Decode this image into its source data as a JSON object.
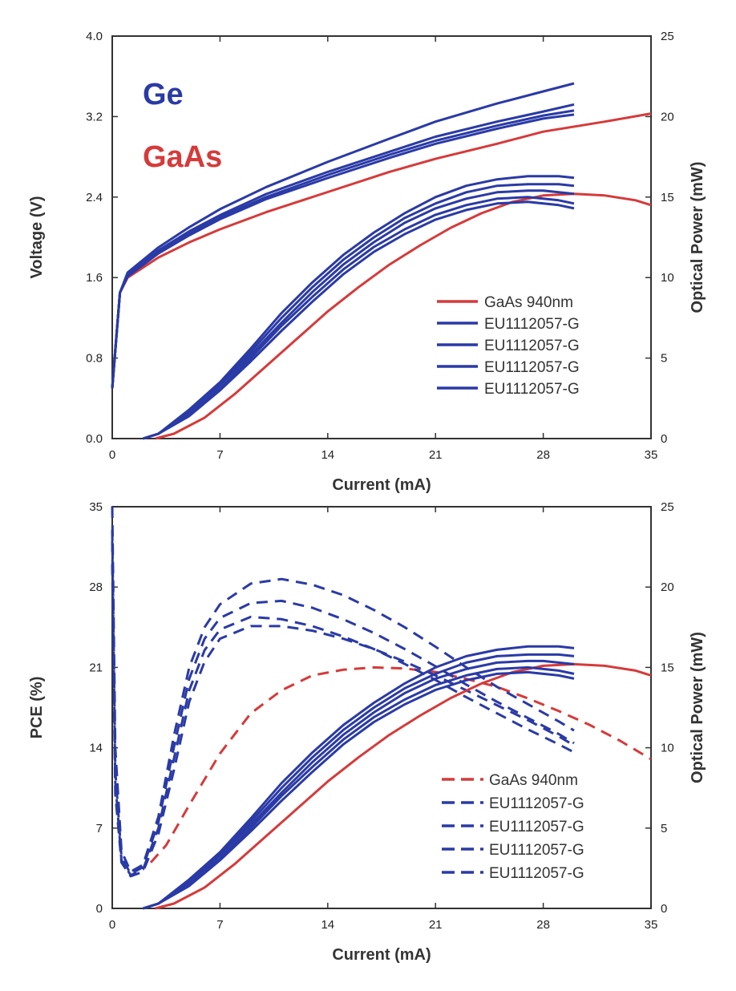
{
  "colors": {
    "gaas": "#d63a3a",
    "ge": "#2a3aa6",
    "axis": "#333333"
  },
  "chart_data": [
    {
      "type": "line",
      "title": "",
      "xlabel": "Current (mA)",
      "ylabel": "Voltage (V)",
      "y2label": "Optical Power (mW)",
      "xlim": [
        0,
        35
      ],
      "ylim": [
        0,
        4.0
      ],
      "y2lim": [
        0,
        25
      ],
      "xticks": [
        "0",
        "7",
        "14",
        "21",
        "28",
        "35"
      ],
      "yticks": [
        "0.0",
        "0.8",
        "1.6",
        "2.4",
        "3.2",
        "4.0"
      ],
      "y2ticks": [
        "0",
        "5",
        "10",
        "15",
        "20",
        "25"
      ],
      "annotations": [
        {
          "text": "Ge",
          "color": "#2a3aa6"
        },
        {
          "text": "GaAs",
          "color": "#d63a3a"
        }
      ],
      "legend": {
        "placement": "bottom-right",
        "entries": [
          "GaAs 940nm",
          "EU1112057-G",
          "EU1112057-G",
          "EU1112057-G",
          "EU1112057-G"
        ]
      },
      "series": [
        {
          "name": "GaAs 940nm",
          "quantity": "voltage",
          "axis": "left",
          "color": "#d63a3a",
          "style": "solid",
          "x": [
            0,
            0.5,
            1,
            3,
            5,
            7,
            10,
            14,
            18,
            21,
            25,
            28,
            32,
            35
          ],
          "y": [
            0.5,
            1.45,
            1.6,
            1.8,
            1.95,
            2.08,
            2.25,
            2.45,
            2.65,
            2.78,
            2.93,
            3.05,
            3.15,
            3.23
          ]
        },
        {
          "name": "EU1112057-G",
          "quantity": "voltage",
          "axis": "left",
          "color": "#2a3aa6",
          "style": "solid",
          "x": [
            0,
            0.5,
            1,
            3,
            5,
            7,
            10,
            14,
            18,
            21,
            25,
            28,
            30
          ],
          "y": [
            0.5,
            1.45,
            1.65,
            1.9,
            2.1,
            2.28,
            2.5,
            2.75,
            2.98,
            3.15,
            3.33,
            3.45,
            3.53
          ]
        },
        {
          "name": "EU1112057-G",
          "quantity": "voltage",
          "axis": "left",
          "color": "#2a3aa6",
          "style": "solid",
          "x": [
            0,
            0.5,
            1,
            3,
            5,
            7,
            10,
            14,
            18,
            21,
            25,
            28,
            30
          ],
          "y": [
            0.5,
            1.45,
            1.63,
            1.87,
            2.06,
            2.22,
            2.43,
            2.65,
            2.85,
            3.0,
            3.15,
            3.25,
            3.32
          ]
        },
        {
          "name": "EU1112057-G",
          "quantity": "voltage",
          "axis": "left",
          "color": "#2a3aa6",
          "style": "solid",
          "x": [
            0,
            0.5,
            1,
            3,
            5,
            7,
            10,
            14,
            18,
            21,
            25,
            28,
            30
          ],
          "y": [
            0.5,
            1.45,
            1.62,
            1.85,
            2.04,
            2.2,
            2.4,
            2.62,
            2.82,
            2.96,
            3.11,
            3.21,
            3.26
          ]
        },
        {
          "name": "EU1112057-G",
          "quantity": "voltage",
          "axis": "left",
          "color": "#2a3aa6",
          "style": "solid",
          "x": [
            0,
            0.5,
            1,
            3,
            5,
            7,
            10,
            14,
            18,
            21,
            25,
            28,
            30
          ],
          "y": [
            0.5,
            1.45,
            1.61,
            1.84,
            2.02,
            2.18,
            2.38,
            2.59,
            2.79,
            2.93,
            3.08,
            3.18,
            3.22
          ]
        },
        {
          "name": "GaAs 940nm",
          "quantity": "optical power",
          "axis": "right",
          "color": "#d63a3a",
          "style": "solid",
          "x": [
            2.8,
            4,
            6,
            8,
            10,
            12,
            14,
            16,
            18,
            20,
            22,
            24,
            26,
            28,
            30,
            32,
            34,
            35
          ],
          "y": [
            0,
            0.3,
            1.3,
            2.8,
            4.5,
            6.2,
            7.9,
            9.4,
            10.8,
            12.0,
            13.1,
            14.0,
            14.7,
            15.1,
            15.2,
            15.1,
            14.8,
            14.5
          ]
        },
        {
          "name": "EU1112057-G",
          "quantity": "optical power",
          "axis": "right",
          "color": "#2a3aa6",
          "style": "solid",
          "x": [
            2,
            3,
            5,
            7,
            9,
            11,
            13,
            15,
            17,
            19,
            21,
            23,
            25,
            27,
            28,
            29,
            30
          ],
          "y": [
            0,
            0.3,
            1.8,
            3.5,
            5.6,
            7.8,
            9.7,
            11.4,
            12.8,
            14.0,
            15.0,
            15.7,
            16.1,
            16.3,
            16.3,
            16.3,
            16.2
          ]
        },
        {
          "name": "EU1112057-G",
          "quantity": "optical power",
          "axis": "right",
          "color": "#2a3aa6",
          "style": "solid",
          "x": [
            2,
            3,
            5,
            7,
            9,
            11,
            13,
            15,
            17,
            19,
            21,
            23,
            25,
            27,
            28,
            29,
            30
          ],
          "y": [
            0,
            0.3,
            1.7,
            3.4,
            5.4,
            7.5,
            9.4,
            11.1,
            12.5,
            13.7,
            14.6,
            15.3,
            15.7,
            15.8,
            15.8,
            15.8,
            15.7
          ]
        },
        {
          "name": "EU1112057-G",
          "quantity": "optical power",
          "axis": "right",
          "color": "#2a3aa6",
          "style": "solid",
          "x": [
            2,
            3,
            5,
            7,
            9,
            11,
            13,
            15,
            17,
            19,
            21,
            23,
            25,
            27,
            28,
            29,
            30
          ],
          "y": [
            0,
            0.3,
            1.6,
            3.3,
            5.2,
            7.2,
            9.1,
            10.8,
            12.2,
            13.4,
            14.3,
            14.9,
            15.3,
            15.4,
            15.4,
            15.3,
            15.2
          ]
        },
        {
          "name": "EU1112057-G",
          "quantity": "optical power",
          "axis": "right",
          "color": "#2a3aa6",
          "style": "solid",
          "x": [
            2,
            3,
            5,
            7,
            9,
            11,
            13,
            15,
            17,
            19,
            21,
            23,
            25,
            27,
            28,
            29,
            30
          ],
          "y": [
            0,
            0.3,
            1.5,
            3.1,
            5.0,
            7.0,
            8.8,
            10.5,
            11.9,
            13.0,
            13.9,
            14.5,
            14.9,
            15.0,
            14.9,
            14.8,
            14.6
          ]
        },
        {
          "name": "EU1112057-G",
          "quantity": "optical power",
          "axis": "right",
          "color": "#2a3aa6",
          "style": "solid",
          "x": [
            2,
            3,
            5,
            7,
            9,
            11,
            13,
            15,
            17,
            19,
            21,
            23,
            25,
            27,
            28,
            29,
            30
          ],
          "y": [
            0,
            0.3,
            1.4,
            3.0,
            4.8,
            6.7,
            8.5,
            10.2,
            11.6,
            12.7,
            13.6,
            14.2,
            14.6,
            14.7,
            14.6,
            14.5,
            14.3
          ]
        }
      ]
    },
    {
      "type": "line",
      "title": "",
      "xlabel": "Current (mA)",
      "ylabel": "PCE (%)",
      "y2label": "Optical Power (mW)",
      "xlim": [
        0,
        35
      ],
      "ylim": [
        0,
        35
      ],
      "y2lim": [
        0,
        25
      ],
      "xticks": [
        "0",
        "7",
        "14",
        "21",
        "28",
        "35"
      ],
      "yticks": [
        "0",
        "7",
        "14",
        "21",
        "28",
        "35"
      ],
      "y2ticks": [
        "0",
        "5",
        "10",
        "15",
        "20",
        "25"
      ],
      "legend": {
        "placement": "bottom-right",
        "entries": [
          "GaAs 940nm",
          "EU1112057-G",
          "EU1112057-G",
          "EU1112057-G",
          "EU1112057-G"
        ]
      },
      "series": [
        {
          "name": "GaAs 940nm",
          "quantity": "PCE",
          "axis": "left",
          "color": "#d63a3a",
          "style": "dashed",
          "x": [
            2.5,
            3.5,
            5,
            7,
            9,
            11,
            13,
            15,
            17,
            19,
            21,
            23,
            25,
            27,
            29,
            31,
            33,
            35
          ],
          "y": [
            4.0,
            5.5,
            9.0,
            13.5,
            17.0,
            19.0,
            20.3,
            20.8,
            21.0,
            20.9,
            20.6,
            20.0,
            19.3,
            18.3,
            17.2,
            16.0,
            14.6,
            13.0
          ]
        },
        {
          "name": "EU1112057-G",
          "quantity": "PCE",
          "axis": "left",
          "color": "#2a3aa6",
          "style": "dashed",
          "x": [
            0,
            0.2,
            0.6,
            1.2,
            2,
            3,
            4,
            5,
            6,
            7,
            9,
            11,
            13,
            15,
            17,
            19,
            21,
            23,
            25,
            27,
            29,
            30
          ],
          "y": [
            35,
            14,
            5,
            3.2,
            3.8,
            8,
            15,
            21,
            24.5,
            26.5,
            28.3,
            28.7,
            28.2,
            27.3,
            26.0,
            24.5,
            22.8,
            21.0,
            19.3,
            17.8,
            16.3,
            15.5
          ]
        },
        {
          "name": "EU1112057-G",
          "quantity": "PCE",
          "axis": "left",
          "color": "#2a3aa6",
          "style": "dashed",
          "x": [
            0,
            0.2,
            0.6,
            1.2,
            2,
            3,
            4,
            5,
            6,
            7,
            9,
            11,
            13,
            15,
            17,
            19,
            21,
            23,
            25,
            27,
            29,
            30
          ],
          "y": [
            33,
            12,
            4.5,
            3.0,
            3.6,
            7.5,
            14,
            20,
            23.5,
            25.3,
            26.6,
            26.8,
            26.2,
            25.2,
            24.0,
            22.6,
            21.1,
            19.5,
            18.0,
            16.6,
            15.2,
            14.4
          ]
        },
        {
          "name": "EU1112057-G",
          "quantity": "PCE",
          "axis": "left",
          "color": "#2a3aa6",
          "style": "dashed",
          "x": [
            0,
            0.2,
            0.6,
            1.2,
            2,
            3,
            4,
            5,
            6,
            7,
            9,
            11,
            13,
            15,
            17,
            19,
            21,
            23,
            25,
            27,
            29,
            30
          ],
          "y": [
            32,
            11,
            4.2,
            2.9,
            3.4,
            7.0,
            13,
            19,
            22.5,
            24.3,
            25.4,
            25.2,
            24.6,
            23.7,
            22.6,
            21.3,
            19.9,
            18.4,
            17.0,
            15.6,
            14.3,
            13.6
          ]
        },
        {
          "name": "EU1112057-G",
          "quantity": "PCE",
          "axis": "left",
          "color": "#2a3aa6",
          "style": "dashed",
          "x": [
            0,
            0.2,
            0.6,
            1.2,
            2,
            3,
            4,
            5,
            6,
            7,
            9,
            11,
            13,
            15,
            17,
            19,
            21,
            23,
            25,
            27,
            29,
            30
          ],
          "y": [
            30,
            10,
            4.0,
            2.8,
            3.2,
            6.5,
            12,
            18,
            21.5,
            23.5,
            24.6,
            24.6,
            24.2,
            23.5,
            22.6,
            21.5,
            20.3,
            19.0,
            17.7,
            16.4,
            15.0,
            14.2
          ]
        },
        {
          "name": "GaAs 940nm",
          "quantity": "optical power",
          "axis": "right",
          "color": "#d63a3a",
          "style": "solid",
          "x": [
            2.8,
            4,
            6,
            8,
            10,
            12,
            14,
            16,
            18,
            20,
            22,
            24,
            26,
            28,
            30,
            32,
            34,
            35
          ],
          "y": [
            0,
            0.3,
            1.3,
            2.8,
            4.5,
            6.2,
            7.9,
            9.4,
            10.8,
            12.0,
            13.1,
            14.0,
            14.7,
            15.1,
            15.2,
            15.1,
            14.8,
            14.5
          ]
        },
        {
          "name": "EU1112057-G",
          "quantity": "optical power",
          "axis": "right",
          "color": "#2a3aa6",
          "style": "solid",
          "x": [
            2,
            3,
            5,
            7,
            9,
            11,
            13,
            15,
            17,
            19,
            21,
            23,
            25,
            27,
            28,
            29,
            30
          ],
          "y": [
            0,
            0.3,
            1.8,
            3.5,
            5.6,
            7.8,
            9.7,
            11.4,
            12.8,
            14.0,
            15.0,
            15.7,
            16.1,
            16.3,
            16.3,
            16.3,
            16.2
          ]
        },
        {
          "name": "EU1112057-G",
          "quantity": "optical power",
          "axis": "right",
          "color": "#2a3aa6",
          "style": "solid",
          "x": [
            2,
            3,
            5,
            7,
            9,
            11,
            13,
            15,
            17,
            19,
            21,
            23,
            25,
            27,
            28,
            29,
            30
          ],
          "y": [
            0,
            0.3,
            1.7,
            3.4,
            5.4,
            7.5,
            9.4,
            11.1,
            12.5,
            13.7,
            14.6,
            15.3,
            15.7,
            15.8,
            15.8,
            15.8,
            15.7
          ]
        },
        {
          "name": "EU1112057-G",
          "quantity": "optical power",
          "axis": "right",
          "color": "#2a3aa6",
          "style": "solid",
          "x": [
            2,
            3,
            5,
            7,
            9,
            11,
            13,
            15,
            17,
            19,
            21,
            23,
            25,
            27,
            28,
            29,
            30
          ],
          "y": [
            0,
            0.3,
            1.6,
            3.3,
            5.2,
            7.2,
            9.1,
            10.8,
            12.2,
            13.4,
            14.3,
            14.9,
            15.3,
            15.4,
            15.4,
            15.3,
            15.2
          ]
        },
        {
          "name": "EU1112057-G",
          "quantity": "optical power",
          "axis": "right",
          "color": "#2a3aa6",
          "style": "solid",
          "x": [
            2,
            3,
            5,
            7,
            9,
            11,
            13,
            15,
            17,
            19,
            21,
            23,
            25,
            27,
            28,
            29,
            30
          ],
          "y": [
            0,
            0.3,
            1.5,
            3.1,
            5.0,
            7.0,
            8.8,
            10.5,
            11.9,
            13.0,
            13.9,
            14.5,
            14.9,
            15.0,
            14.9,
            14.8,
            14.6
          ]
        },
        {
          "name": "EU1112057-G",
          "quantity": "optical power",
          "axis": "right",
          "color": "#2a3aa6",
          "style": "solid",
          "x": [
            2,
            3,
            5,
            7,
            9,
            11,
            13,
            15,
            17,
            19,
            21,
            23,
            25,
            27,
            28,
            29,
            30
          ],
          "y": [
            0,
            0.3,
            1.4,
            3.0,
            4.8,
            6.7,
            8.5,
            10.2,
            11.6,
            12.7,
            13.6,
            14.2,
            14.6,
            14.7,
            14.6,
            14.5,
            14.3
          ]
        }
      ]
    }
  ]
}
